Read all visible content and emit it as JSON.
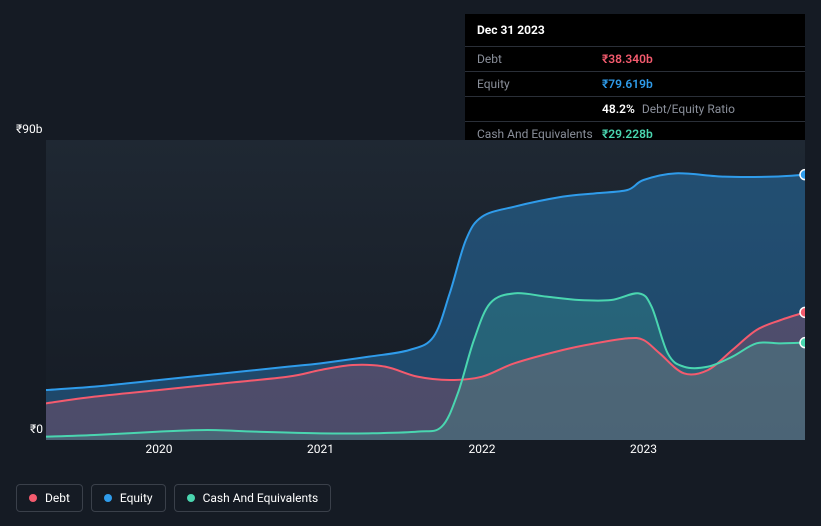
{
  "tooltip": {
    "title": "Dec 31 2023",
    "rows": [
      {
        "label": "Debt",
        "value": "₹38.340b",
        "color": "#f45b6e"
      },
      {
        "label": "Equity",
        "value": "₹79.619b",
        "color": "#2f9ceb"
      },
      {
        "label": "",
        "value": "48.2%",
        "sublabel": "Debt/Equity Ratio",
        "color": "#ffffff"
      },
      {
        "label": "Cash And Equivalents",
        "value": "₹29.228b",
        "color": "#4ad6b0"
      }
    ]
  },
  "chart": {
    "type": "area",
    "background_top": "#1f2833",
    "background_bottom": "#151b24",
    "grid_color": "#2a2f38",
    "ylim": [
      0,
      90
    ],
    "ylabels": {
      "top": "₹90b",
      "bottom": "₹0"
    },
    "x_start": 2019.3,
    "x_end": 2024.0,
    "xticks": [
      2020,
      2021,
      2022,
      2023
    ],
    "series": {
      "equity": {
        "label": "Equity",
        "stroke": "#2f9ceb",
        "fill": "#2f9ceb",
        "fill_opacity": 0.35,
        "stroke_width": 2,
        "points": [
          {
            "x": 2019.3,
            "y": 15
          },
          {
            "x": 2019.6,
            "y": 16
          },
          {
            "x": 2020.0,
            "y": 18
          },
          {
            "x": 2020.4,
            "y": 20
          },
          {
            "x": 2020.8,
            "y": 22
          },
          {
            "x": 2021.0,
            "y": 23
          },
          {
            "x": 2021.3,
            "y": 25
          },
          {
            "x": 2021.55,
            "y": 27
          },
          {
            "x": 2021.7,
            "y": 31
          },
          {
            "x": 2021.8,
            "y": 44
          },
          {
            "x": 2021.9,
            "y": 60
          },
          {
            "x": 2022.0,
            "y": 67
          },
          {
            "x": 2022.2,
            "y": 70
          },
          {
            "x": 2022.5,
            "y": 73
          },
          {
            "x": 2022.7,
            "y": 74
          },
          {
            "x": 2022.9,
            "y": 75
          },
          {
            "x": 2023.0,
            "y": 78
          },
          {
            "x": 2023.2,
            "y": 80
          },
          {
            "x": 2023.5,
            "y": 79
          },
          {
            "x": 2023.8,
            "y": 79
          },
          {
            "x": 2024.0,
            "y": 79.6
          }
        ]
      },
      "debt": {
        "label": "Debt",
        "stroke": "#f45b6e",
        "fill": "#f45b6e",
        "fill_opacity": 0.22,
        "stroke_width": 2,
        "points": [
          {
            "x": 2019.3,
            "y": 11
          },
          {
            "x": 2019.6,
            "y": 13
          },
          {
            "x": 2020.0,
            "y": 15
          },
          {
            "x": 2020.4,
            "y": 17
          },
          {
            "x": 2020.8,
            "y": 19
          },
          {
            "x": 2021.0,
            "y": 21
          },
          {
            "x": 2021.2,
            "y": 22.5
          },
          {
            "x": 2021.4,
            "y": 22
          },
          {
            "x": 2021.6,
            "y": 19
          },
          {
            "x": 2021.8,
            "y": 18
          },
          {
            "x": 2022.0,
            "y": 19
          },
          {
            "x": 2022.2,
            "y": 23
          },
          {
            "x": 2022.5,
            "y": 27
          },
          {
            "x": 2022.7,
            "y": 29
          },
          {
            "x": 2022.9,
            "y": 30.5
          },
          {
            "x": 2023.0,
            "y": 30
          },
          {
            "x": 2023.1,
            "y": 26
          },
          {
            "x": 2023.25,
            "y": 20
          },
          {
            "x": 2023.4,
            "y": 21
          },
          {
            "x": 2023.55,
            "y": 27
          },
          {
            "x": 2023.7,
            "y": 33
          },
          {
            "x": 2023.85,
            "y": 36
          },
          {
            "x": 2024.0,
            "y": 38.3
          }
        ]
      },
      "cash": {
        "label": "Cash And Equivalents",
        "stroke": "#4ad6b0",
        "fill": "#4ad6b0",
        "fill_opacity": 0.18,
        "stroke_width": 2,
        "points": [
          {
            "x": 2019.3,
            "y": 1
          },
          {
            "x": 2019.6,
            "y": 1.5
          },
          {
            "x": 2020.0,
            "y": 2.5
          },
          {
            "x": 2020.3,
            "y": 3
          },
          {
            "x": 2020.6,
            "y": 2.5
          },
          {
            "x": 2021.0,
            "y": 2
          },
          {
            "x": 2021.3,
            "y": 2
          },
          {
            "x": 2021.6,
            "y": 2.5
          },
          {
            "x": 2021.75,
            "y": 4
          },
          {
            "x": 2021.85,
            "y": 14
          },
          {
            "x": 2021.95,
            "y": 30
          },
          {
            "x": 2022.05,
            "y": 41
          },
          {
            "x": 2022.2,
            "y": 44
          },
          {
            "x": 2022.4,
            "y": 43
          },
          {
            "x": 2022.6,
            "y": 42
          },
          {
            "x": 2022.8,
            "y": 42
          },
          {
            "x": 2022.97,
            "y": 44
          },
          {
            "x": 2023.05,
            "y": 40
          },
          {
            "x": 2023.15,
            "y": 26
          },
          {
            "x": 2023.25,
            "y": 22
          },
          {
            "x": 2023.4,
            "y": 22
          },
          {
            "x": 2023.55,
            "y": 25
          },
          {
            "x": 2023.7,
            "y": 29
          },
          {
            "x": 2023.85,
            "y": 29
          },
          {
            "x": 2024.0,
            "y": 29.2
          }
        ]
      }
    },
    "endpoint_markers": [
      {
        "series": "equity",
        "color": "#2f9ceb"
      },
      {
        "series": "debt",
        "color": "#f45b6e"
      },
      {
        "series": "cash",
        "color": "#4ad6b0"
      }
    ]
  },
  "legend": [
    {
      "key": "debt",
      "label": "Debt",
      "color": "#f45b6e"
    },
    {
      "key": "equity",
      "label": "Equity",
      "color": "#2f9ceb"
    },
    {
      "key": "cash",
      "label": "Cash And Equivalents",
      "color": "#4ad6b0"
    }
  ]
}
